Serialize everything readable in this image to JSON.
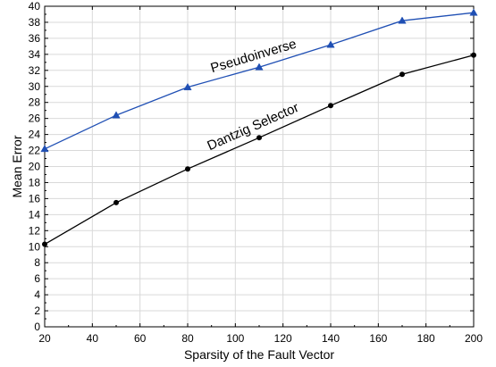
{
  "chart_data": {
    "type": "line",
    "title": "",
    "xlabel": "Sparsity of the Fault Vector",
    "ylabel": "Mean Error",
    "xlim": [
      20,
      200
    ],
    "ylim": [
      0,
      40
    ],
    "xticks": [
      20,
      40,
      60,
      80,
      100,
      120,
      140,
      160,
      180,
      200
    ],
    "yticks": [
      0,
      2,
      4,
      6,
      8,
      10,
      12,
      14,
      16,
      18,
      20,
      22,
      24,
      26,
      28,
      30,
      32,
      34,
      36,
      38,
      40
    ],
    "grid": true,
    "legend": "none",
    "series": [
      {
        "name": "Pseudoinverse",
        "color": "#1f4fb4",
        "marker": "triangle",
        "x": [
          20,
          50,
          80,
          110,
          140,
          170,
          200
        ],
        "y": [
          22.2,
          26.4,
          29.9,
          32.4,
          35.2,
          38.2,
          39.2
        ]
      },
      {
        "name": "Dantzig Selector",
        "color": "#000000",
        "marker": "circle",
        "x": [
          20,
          50,
          80,
          110,
          140,
          170,
          200
        ],
        "y": [
          10.3,
          15.5,
          19.7,
          23.6,
          27.6,
          31.5,
          33.9
        ]
      }
    ],
    "annotations": [
      {
        "text": "Pseudoinverse",
        "series": 0
      },
      {
        "text": "Dantzig Selector",
        "series": 1
      }
    ]
  }
}
